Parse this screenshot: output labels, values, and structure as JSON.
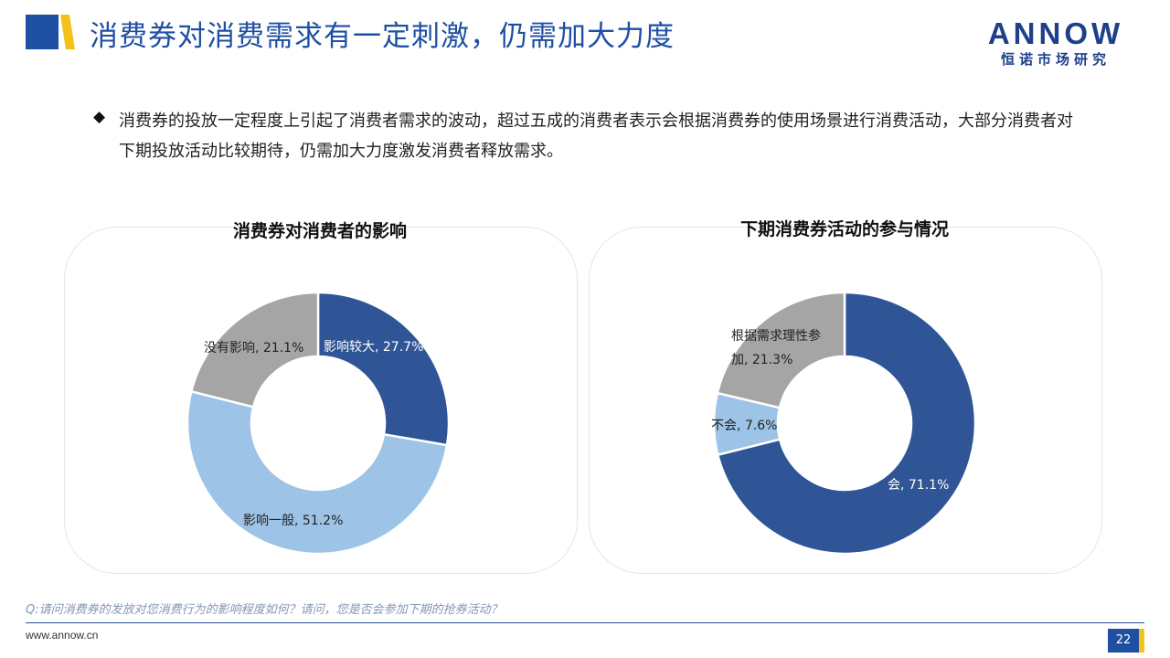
{
  "header": {
    "title": "消费券对消费需求有一定刺激，仍需加大力度",
    "brand_name": "ANNOW",
    "brand_cn": "恒诺市场研究"
  },
  "summary": {
    "bullet": "◆",
    "text": "消费券的投放一定程度上引起了消费者需求的波动，超过五成的消费者表示会根据消费券的使用场景进行消费活动，大部分消费者对下期投放活动比较期待，仍需加大力度激发消费者释放需求。"
  },
  "chart_data": [
    {
      "type": "pie",
      "title": "消费券对消费者的影响",
      "categories": [
        "影响较大",
        "影响一般",
        "没有影响"
      ],
      "values": [
        27.7,
        51.2,
        21.1
      ],
      "value_labels": [
        "影响较大, 27.7%",
        "影响一般, 51.2%",
        "没有影响, 21.1%"
      ],
      "colors": [
        "#2f5597",
        "#9dc3e6",
        "#a5a5a5"
      ]
    },
    {
      "type": "pie",
      "title": "下期消费券活动的参与情况",
      "categories": [
        "会",
        "不会",
        "根据需求理性参加"
      ],
      "values": [
        71.1,
        7.6,
        21.3
      ],
      "value_labels": [
        "会, 71.1%",
        "不会, 7.6%",
        "根据需求理性参\n加, 21.3%"
      ],
      "colors": [
        "#2f5597",
        "#9dc3e6",
        "#a5a5a5"
      ]
    }
  ],
  "footer": {
    "question": "Q:请问消费券的发放对您消费行为的影响程度如何？请问，您是否会参加下期的抢券活动？",
    "website": "www.annow.cn",
    "page": "22"
  },
  "colors": {
    "accent": "#1f4fa3",
    "yellow": "#f3c21a",
    "navy": "#1e3f8c"
  }
}
